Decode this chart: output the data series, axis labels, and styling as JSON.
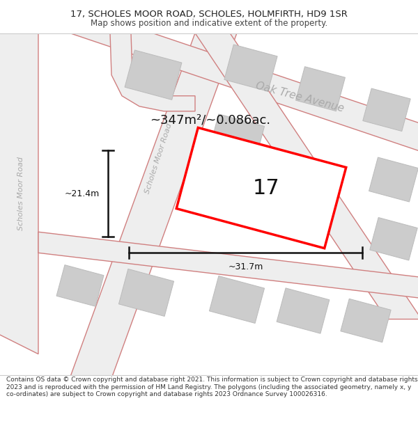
{
  "title_line1": "17, SCHOLES MOOR ROAD, SCHOLES, HOLMFIRTH, HD9 1SR",
  "title_line2": "Map shows position and indicative extent of the property.",
  "footer_text": "Contains OS data © Crown copyright and database right 2021. This information is subject to Crown copyright and database rights 2023 and is reproduced with the permission of HM Land Registry. The polygons (including the associated geometry, namely x, y co-ordinates) are subject to Crown copyright and database rights 2023 Ordnance Survey 100026316.",
  "fig_bg": "#ffffff",
  "map_bg": "#eeeeee",
  "road_color": "#d08080",
  "road_fill": "#eeeeee",
  "building_fill": "#cccccc",
  "building_edge": "#bbbbbb",
  "highlight_color": "#ff0000",
  "highlight_fill": "#ffffff",
  "street_color": "#aaaaaa",
  "dim_color": "#111111",
  "area_text": "~347m²/~0.086ac.",
  "dim_w_text": "~31.7m",
  "dim_h_text": "~21.4m",
  "plot_label": "17",
  "label_oak": "Oak Tree Avenue",
  "label_scholes1": "Scholes Moor Road",
  "label_scholes2": "Scholes Moor Road"
}
